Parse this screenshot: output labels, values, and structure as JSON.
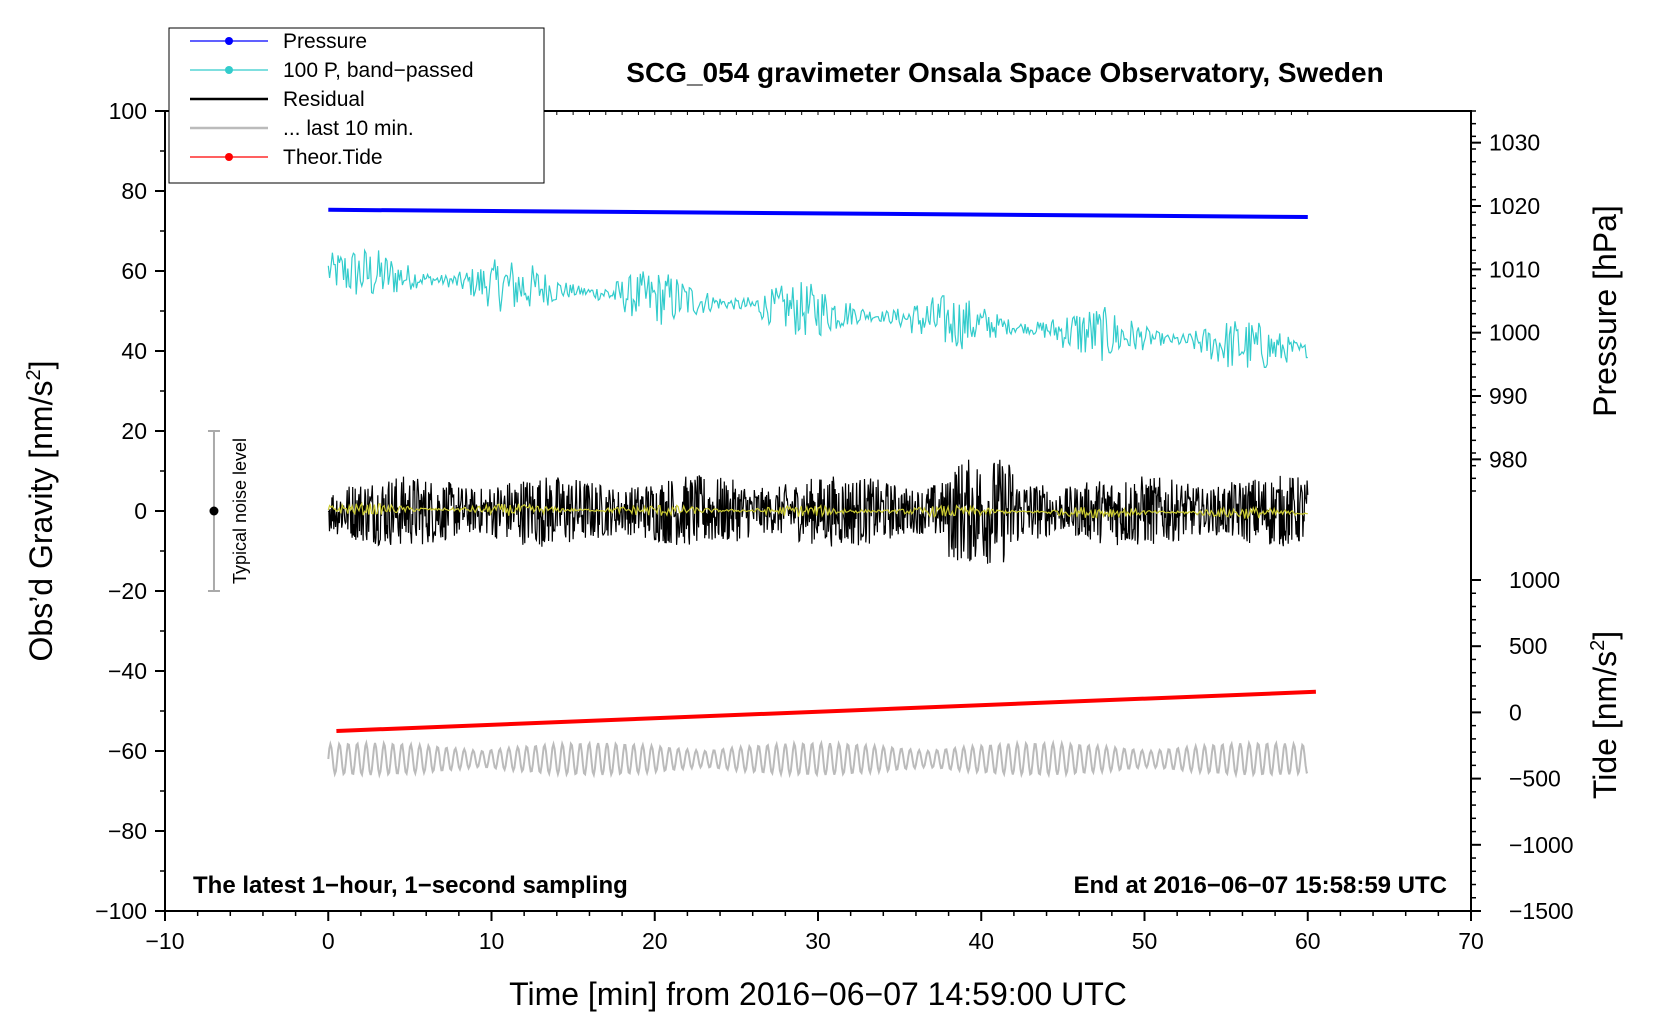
{
  "chart_data": {
    "type": "line",
    "title": "SCG_054 gravimeter Onsala Space Observatory, Sweden",
    "xlabel": "Time [min] from 2016−06−07 14:59:00 UTC",
    "ylabel_left": "Obs’d Gravity [nm/s",
    "ylabel_left_sup": "2",
    "ylabel_left_end": "]",
    "ylabel_pressure": "Pressure [hPa]",
    "ylabel_tide": "Tide [nm/s",
    "ylabel_tide_sup": "2",
    "ylabel_tide_end": "]",
    "xlim": [
      -10,
      70
    ],
    "ylim_left": [
      -100,
      100
    ],
    "pressure_range": [
      975,
      1035
    ],
    "pressure_ticks": [
      "980",
      "990",
      "1000",
      "1010",
      "1020",
      "1030"
    ],
    "tide_ticks": [
      "−1500",
      "−1000",
      "−500",
      "0",
      "500",
      "1000"
    ],
    "x_ticks": [
      "−10",
      "0",
      "10",
      "20",
      "30",
      "40",
      "50",
      "60",
      "70"
    ],
    "y_ticks": [
      "−100",
      "−80",
      "−60",
      "−40",
      "−20",
      "0",
      "20",
      "40",
      "60",
      "80",
      "100"
    ],
    "note_left": "The latest 1−hour, 1−second sampling",
    "note_right": "End at 2016−06−07 15:58:59 UTC",
    "noise_label": "Typical noise level",
    "noise_bar": {
      "x": -7,
      "center": 0,
      "half_range": 20
    },
    "legend": [
      {
        "label": "Pressure",
        "color": "#0000ff",
        "marker": true
      },
      {
        "label": "100 P, band−passed",
        "color": "#33cccc",
        "marker": true
      },
      {
        "label": "Residual",
        "color": "#000000",
        "marker": false
      },
      {
        "label": "... last 10 min.",
        "color": "#bbbbbb",
        "marker": false
      },
      {
        "label": "Theor.Tide",
        "color": "#ff0000",
        "marker": true
      }
    ],
    "series": [
      {
        "name": "Pressure",
        "color": "#0000ff",
        "x_range": [
          0,
          60
        ],
        "y_start": 75.3,
        "y_end": 73.5,
        "unit": "nm/s2 axis"
      },
      {
        "name": "100 P, band−passed",
        "color": "#33cccc",
        "x_range": [
          0,
          60
        ],
        "y_start": 60,
        "y_end": 40,
        "amplitude": 7
      },
      {
        "name": "Residual",
        "color": "#000000",
        "x_range": [
          0,
          60
        ],
        "y_start": 0,
        "y_end": 0,
        "amplitude": 9
      },
      {
        "name": "Residual smoothed",
        "color": "#cccc33",
        "x_range": [
          0,
          60
        ],
        "y_start": 0.5,
        "y_end": -0.5,
        "amplitude": 1.5
      },
      {
        "name": "... last 10 min.",
        "color": "#bbbbbb",
        "x_range": [
          0,
          60
        ],
        "y_start": -62,
        "y_end": -62,
        "amplitude": 4
      },
      {
        "name": "Theor.Tide",
        "color": "#ff0000",
        "x_range": [
          0.5,
          60.5
        ],
        "y_start": -55,
        "y_end": -45.2
      }
    ]
  }
}
